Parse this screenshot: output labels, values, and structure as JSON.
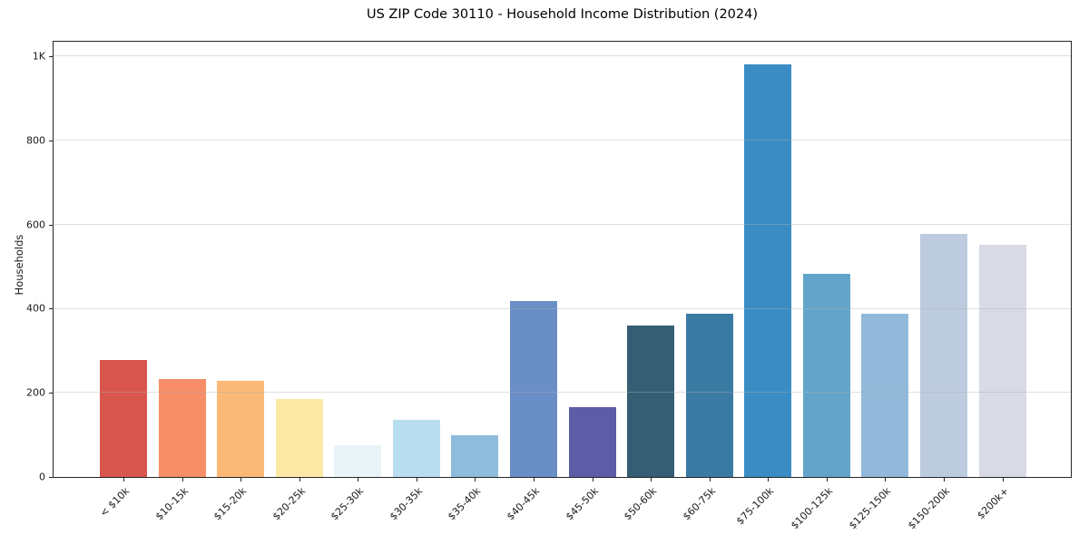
{
  "chart_data": {
    "type": "bar",
    "title": "US ZIP Code 30110 - Household Income Distribution (2024)",
    "xlabel": "",
    "ylabel": "Households",
    "categories": [
      "< $10k",
      "$10-15k",
      "$15-20k",
      "$20-25k",
      "$25-30k",
      "$30-35k",
      "$35-40k",
      "$40-45k",
      "$45-50k",
      "$50-60k",
      "$60-75k",
      "$75-100k",
      "$100-125k",
      "$125-150k",
      "$150-200k",
      "$200k+"
    ],
    "values": [
      278,
      233,
      228,
      186,
      76,
      135,
      100,
      418,
      167,
      360,
      388,
      982,
      484,
      389,
      578,
      551
    ],
    "bar_colors": [
      "#d8564e",
      "#f78e68",
      "#fbb977",
      "#fde9a6",
      "#e9f4f8",
      "#b9def0",
      "#8fbcdd",
      "#6a8ec6",
      "#5d5ca7",
      "#355e74",
      "#3a7ba3",
      "#398dc4",
      "#63a5ca",
      "#92b9da",
      "#bdcbdf",
      "#d8dae6"
    ],
    "y_ticks": {
      "labels": [
        "0",
        "200",
        "400",
        "600",
        "800",
        "1K"
      ],
      "values": [
        0,
        200,
        400,
        600,
        800,
        1000
      ]
    },
    "ylim": [
      0,
      1035
    ],
    "grid": "horizontal",
    "legend": "none",
    "axis_color": "#262626",
    "grid_color_rgba": "rgba(176,176,176,0.4)"
  }
}
